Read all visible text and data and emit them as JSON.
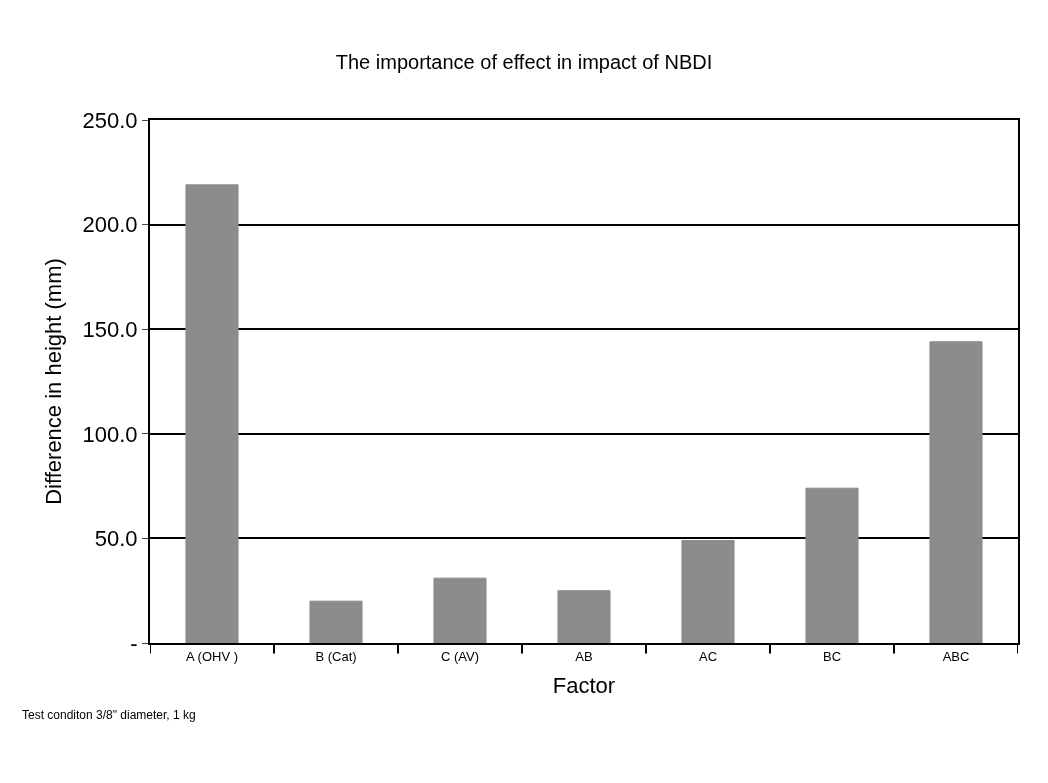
{
  "chart_data": {
    "type": "bar",
    "title": "The importance of effect in impact of NBDI",
    "xlabel": "Factor",
    "ylabel": "Difference in height (mm)",
    "categories": [
      "A (OHV )",
      "B (Cat)",
      "C (AV)",
      "AB",
      "AC",
      "BC",
      "ABC"
    ],
    "values": [
      219,
      20,
      31,
      25,
      49,
      74,
      144
    ],
    "color": "#8c8c8c",
    "ylim": [
      0,
      250
    ],
    "yticks": [
      {
        "value": 0,
        "label": "-"
      },
      {
        "value": 50,
        "label": "50.0"
      },
      {
        "value": 100,
        "label": "100.0"
      },
      {
        "value": 150,
        "label": "150.0"
      },
      {
        "value": 200,
        "label": "200.0"
      },
      {
        "value": 250,
        "label": "250.0"
      }
    ],
    "grid": "y",
    "annotations": [
      "Test conditon 3/8\" diameter, 1 kg"
    ]
  }
}
